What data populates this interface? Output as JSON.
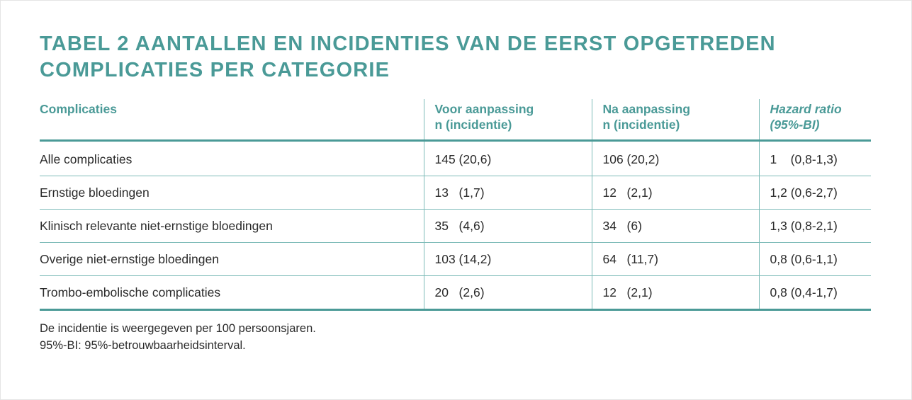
{
  "title": {
    "line1": "TABEL 2  AANTALLEN EN INCIDENTIES VAN DE EERST OPGETREDEN",
    "line2": "COMPLICATIES PER CATEGORIE"
  },
  "table": {
    "headers": [
      {
        "line1": "Complicaties",
        "line2": ""
      },
      {
        "line1": "Voor aanpassing",
        "line2": "n (incidentie)"
      },
      {
        "line1": "Na aanpassing",
        "line2": "n (incidentie)"
      },
      {
        "line1": "Hazard ratio",
        "line2": "(95%-BI)"
      }
    ],
    "rows": [
      [
        "Alle complicaties",
        "145 (20,6)",
        "106 (20,2)",
        "1    (0,8-1,3)"
      ],
      [
        "Ernstige bloedingen",
        "13   (1,7)",
        "12   (2,1)",
        "1,2 (0,6-2,7)"
      ],
      [
        "Klinisch relevante niet-ernstige bloedingen",
        "35   (4,6)",
        "34   (6)",
        "1,3 (0,8-2,1)"
      ],
      [
        "Overige niet-ernstige bloedingen",
        "103 (14,2)",
        "64   (11,7)",
        "0,8 (0,6-1,1)"
      ],
      [
        "Trombo-embolische complicaties",
        "20   (2,6)",
        "12   (2,1)",
        "0,8 (0,4-1,7)"
      ]
    ]
  },
  "footnotes": [
    "De incidentie is weergegeven per 100 persoonsjaren.",
    "95%-BI: 95%-betrouwbaarheidsinterval."
  ],
  "colors": {
    "accent": "#4a9a97",
    "rule": "#7dbbb8",
    "text": "#2b2b2b"
  }
}
